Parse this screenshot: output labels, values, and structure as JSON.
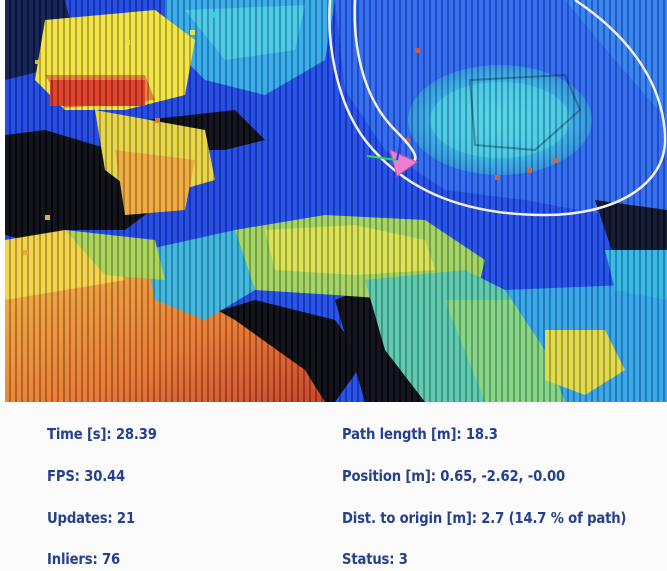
{
  "visualization": {
    "view": "3D voxel map with estimated trajectory",
    "icons": [
      "camera-pose-icon",
      "trajectory-path"
    ]
  },
  "stats": {
    "time": "Time [s]: 28.39",
    "fps": "FPS: 30.44",
    "updates": "Updates: 21",
    "inliers": "Inliers: 76",
    "path_length": "Path length [m]: 18.3",
    "position": "Position [m]: 0.65, -2.62, -0.00",
    "dist_origin": "Dist. to origin [m]: 2.7 (14.7 % of path)",
    "status": "Status: 3"
  },
  "colors": {
    "stat_text": "#26418c",
    "deep_blue": "#1f49e6",
    "cyan": "#35c6e8",
    "yellow": "#f2e33a",
    "orange": "#f08a2a",
    "red": "#e2331f",
    "path": "#f3f0ea",
    "camera": "#ee7fd0"
  }
}
